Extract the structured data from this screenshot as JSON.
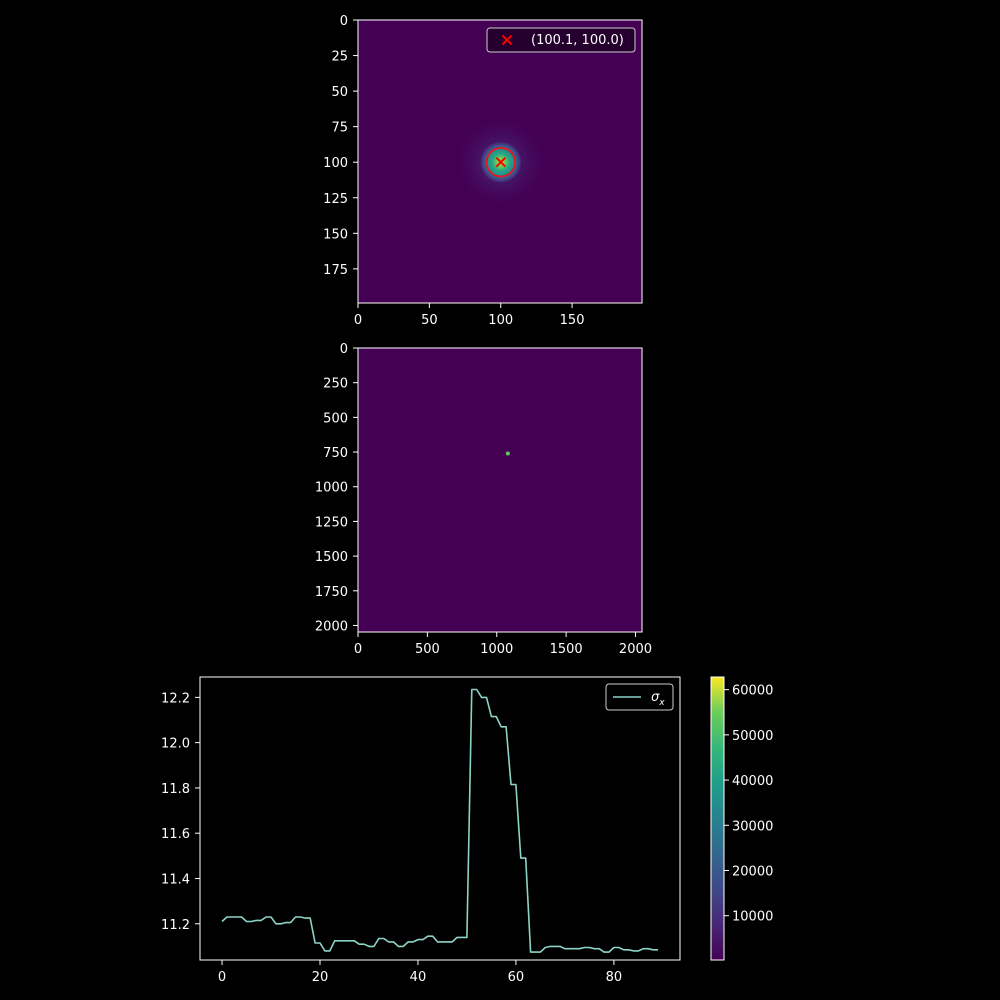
{
  "chart_data": [
    {
      "type": "heatmap",
      "panel": "zoom",
      "xlim": [
        0,
        199
      ],
      "ylim": [
        199,
        0
      ],
      "x_ticks": [
        0,
        50,
        100,
        150
      ],
      "y_ticks": [
        0,
        25,
        50,
        75,
        100,
        125,
        150,
        175
      ],
      "background_color": "#440154",
      "spot": {
        "x": 100.1,
        "y": 100.0,
        "radius": 10
      },
      "marker": {
        "x": 100.1,
        "y": 100.0,
        "color": "#ff0000",
        "symbol": "x"
      },
      "circle": {
        "x": 100.1,
        "y": 100.0,
        "radius": 10,
        "color": "#e0182a"
      },
      "legend": {
        "label": "(100.1, 100.0)",
        "position": "top-right"
      }
    },
    {
      "type": "heatmap",
      "panel": "full",
      "xlim": [
        0,
        2047
      ],
      "ylim": [
        2047,
        0
      ],
      "x_ticks": [
        0,
        500,
        1000,
        1500,
        2000
      ],
      "y_ticks": [
        0,
        250,
        500,
        750,
        1000,
        1250,
        1500,
        1750,
        2000
      ],
      "background_color": "#440154",
      "spot": {
        "x": 1080,
        "y": 760
      }
    },
    {
      "type": "line",
      "line_color": "#8dd3c7",
      "xlim": [
        -4.5,
        93.5
      ],
      "ylim": [
        11.04,
        12.29
      ],
      "x_ticks": [
        0,
        20,
        40,
        60,
        80
      ],
      "y_ticks": [
        "11.2",
        "11.4",
        "11.6",
        "11.8",
        "12.0",
        "12.2"
      ],
      "legend": {
        "label": "σ",
        "label_sub": "x",
        "position": "top-right"
      },
      "series": [
        {
          "x": [
            0,
            1,
            2,
            3,
            4,
            5,
            6,
            7,
            8,
            9,
            10,
            11,
            12,
            13,
            14,
            15,
            16,
            17,
            18,
            19,
            20,
            21,
            22,
            23,
            24,
            25,
            26,
            27,
            28,
            29,
            30,
            31,
            32,
            33,
            34,
            35,
            36,
            37,
            38,
            39,
            40,
            41,
            42,
            43,
            44,
            45,
            46,
            47,
            48,
            49,
            50,
            51,
            52,
            53,
            54,
            55,
            56,
            57,
            58,
            59,
            60,
            61,
            62,
            63,
            64,
            65,
            66,
            67,
            68,
            69,
            70,
            71,
            72,
            73,
            74,
            75,
            76,
            77,
            78,
            79,
            80,
            81,
            82,
            83,
            84,
            85,
            86,
            87,
            88,
            89
          ],
          "values": [
            11.21,
            11.23,
            11.23,
            11.23,
            11.23,
            11.21,
            11.21,
            11.215,
            11.215,
            11.23,
            11.23,
            11.2,
            11.2,
            11.205,
            11.205,
            11.23,
            11.23,
            11.225,
            11.225,
            11.115,
            11.115,
            11.08,
            11.08,
            11.125,
            11.125,
            11.125,
            11.125,
            11.125,
            11.11,
            11.11,
            11.1,
            11.1,
            11.135,
            11.135,
            11.12,
            11.12,
            11.1,
            11.1,
            11.12,
            11.12,
            11.13,
            11.13,
            11.145,
            11.145,
            11.12,
            11.12,
            11.12,
            11.12,
            11.14,
            11.14,
            11.14,
            12.235,
            12.235,
            12.2,
            12.2,
            12.115,
            12.115,
            12.07,
            12.07,
            11.815,
            11.815,
            11.49,
            11.49,
            11.075,
            11.075,
            11.075,
            11.095,
            11.1,
            11.1,
            11.1,
            11.09,
            11.09,
            11.09,
            11.09,
            11.095,
            11.095,
            11.09,
            11.09,
            11.075,
            11.075,
            11.095,
            11.095,
            11.085,
            11.085,
            11.08,
            11.08,
            11.09,
            11.09,
            11.085,
            11.085
          ]
        }
      ]
    },
    {
      "type": "colorbar",
      "colormap": "viridis",
      "range": [
        200,
        62800
      ],
      "ticks": [
        10000,
        20000,
        30000,
        40000,
        50000,
        60000
      ]
    }
  ]
}
